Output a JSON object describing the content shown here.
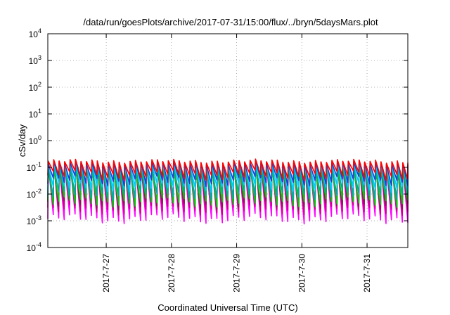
{
  "chart_data": {
    "type": "line",
    "title": "/data/run/goesPlots/archive/2017-07-31/15:00/flux/../bryn/5daysMars.plot",
    "xlabel": "Coordinated Universal Time (UTC)",
    "ylabel": "cSv/day",
    "yscale": "log",
    "ylim": [
      0.0001,
      10000
    ],
    "xlim": [
      "2017-07-26 02:30",
      "2017-07-31 15:00"
    ],
    "x_ticks": [
      "2017-7-27",
      "2017-7-28",
      "2017-7-29",
      "2017-7-30",
      "2017-7-31"
    ],
    "y_ticks": [
      {
        "base": "10",
        "exp": "4"
      },
      {
        "base": "10",
        "exp": "3"
      },
      {
        "base": "10",
        "exp": "2"
      },
      {
        "base": "10",
        "exp": "1"
      },
      {
        "base": "10",
        "exp": "0"
      },
      {
        "base": "10",
        "exp": "-1"
      },
      {
        "base": "10",
        "exp": "-2"
      },
      {
        "base": "10",
        "exp": "-3"
      },
      {
        "base": "10",
        "exp": "-4"
      }
    ],
    "grid": true,
    "legend": "none",
    "pattern": "sawtooth",
    "cycles_per_day": 12,
    "series": [
      {
        "color": "#ff00ff",
        "peak": 0.14,
        "trough": 0.0012
      },
      {
        "color": "#cc0088",
        "peak": 0.12,
        "trough": 0.0025
      },
      {
        "color": "#7a1f4a",
        "peak": 0.11,
        "trough": 0.004
      },
      {
        "color": "#00cc00",
        "peak": 0.1,
        "trough": 0.005
      },
      {
        "color": "#00aaaa",
        "peak": 0.12,
        "trough": 0.009
      },
      {
        "color": "#00ccff",
        "peak": 0.14,
        "trough": 0.018
      },
      {
        "color": "#1f3fcc",
        "peak": 0.15,
        "trough": 0.03
      },
      {
        "color": "#ff0000",
        "peak": 0.17,
        "trough": 0.05
      }
    ]
  }
}
